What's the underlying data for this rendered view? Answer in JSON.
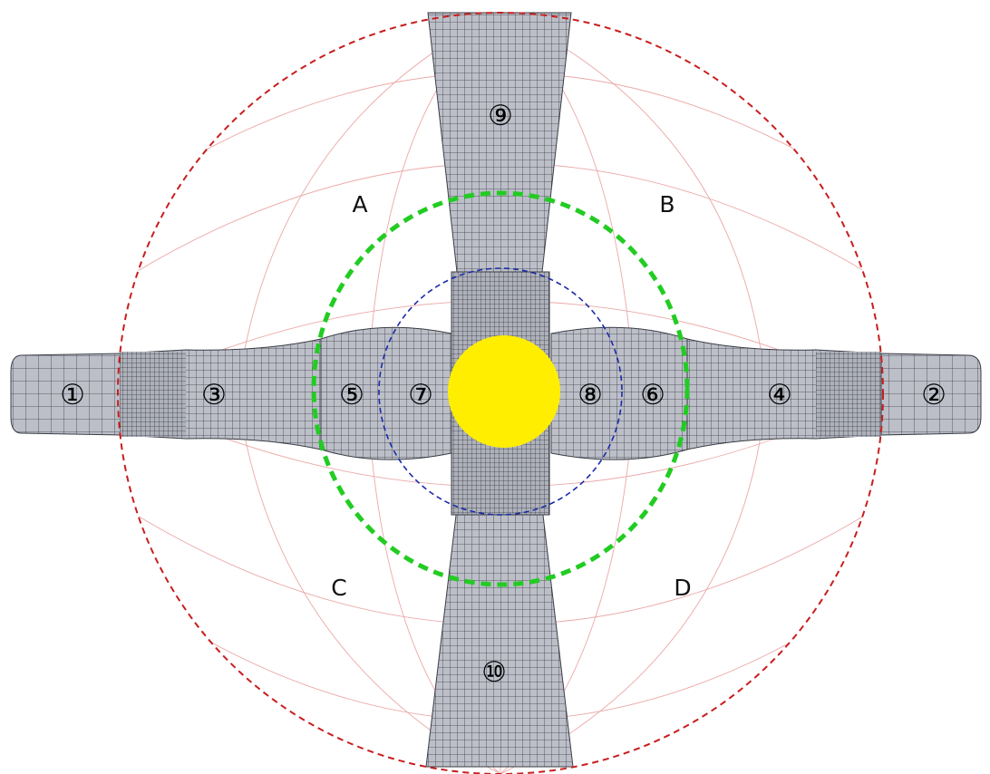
{
  "palette": {
    "outer_boundary": "#c81e1e",
    "middle_boundary": "#22cc22",
    "inner_boundary": "#1a2ba8",
    "core": "#ffee00",
    "mesh_fill": "#bcbfc8",
    "mesh_line": "#3a3d45",
    "guide_grid": "#e58a8a"
  },
  "zones": [
    {
      "id": "A",
      "label": "A"
    },
    {
      "id": "B",
      "label": "B"
    },
    {
      "id": "C",
      "label": "C"
    },
    {
      "id": "D",
      "label": "D"
    }
  ],
  "blocks": [
    {
      "id": 1,
      "label": "①"
    },
    {
      "id": 2,
      "label": "②"
    },
    {
      "id": 3,
      "label": "③"
    },
    {
      "id": 4,
      "label": "④"
    },
    {
      "id": 5,
      "label": "⑤"
    },
    {
      "id": 6,
      "label": "⑥"
    },
    {
      "id": 7,
      "label": "⑦"
    },
    {
      "id": 8,
      "label": "⑧"
    },
    {
      "id": 9,
      "label": "⑨"
    },
    {
      "id": 10,
      "label": "⑩"
    }
  ]
}
